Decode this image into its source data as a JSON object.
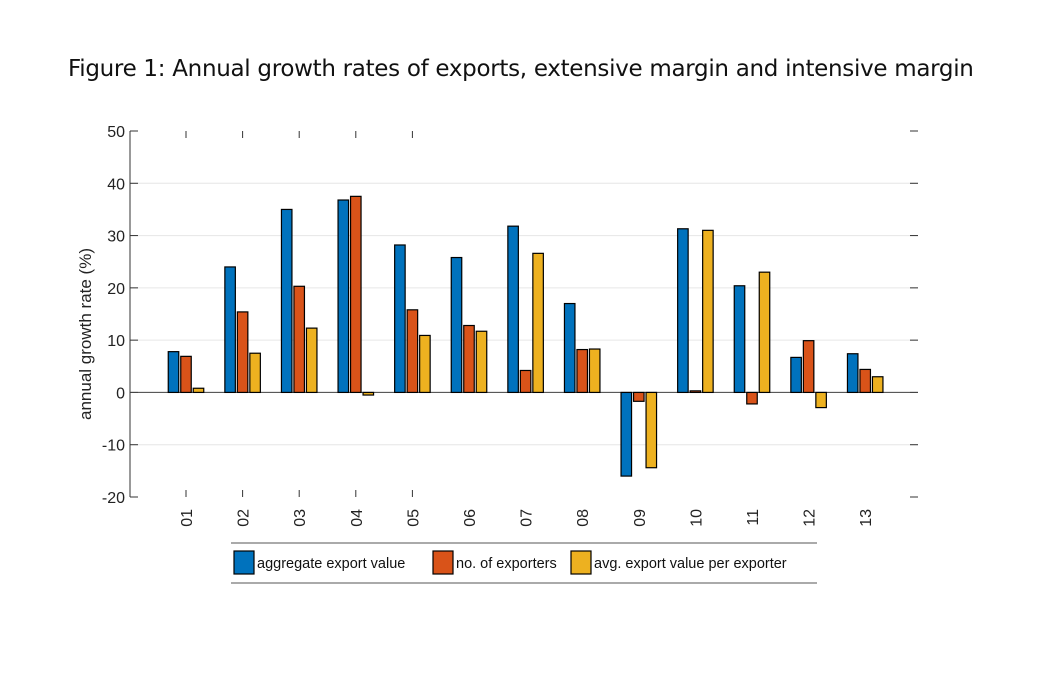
{
  "figure_title": "Figure 1: Annual growth rates of exports, extensive margin and intensive margin",
  "chart_data": {
    "type": "bar",
    "title": "",
    "xlabel": "",
    "ylabel": "annual growth rate (%)",
    "ylim": [
      -20,
      50
    ],
    "yticks": [
      -20,
      -10,
      0,
      10,
      20,
      30,
      40,
      50
    ],
    "ytick_labels": [
      "-20",
      "-10",
      "0",
      "10",
      "20",
      "30",
      "40",
      "50"
    ],
    "categories": [
      "01",
      "02",
      "03",
      "04",
      "05",
      "06",
      "07",
      "08",
      "09",
      "10",
      "11",
      "12",
      "13"
    ],
    "series": [
      {
        "name": "aggregate export value",
        "color": "#0072BD",
        "values": [
          7.8,
          24.0,
          35.0,
          36.8,
          28.2,
          25.8,
          31.8,
          17.0,
          -16.0,
          31.3,
          20.4,
          6.7,
          7.4
        ]
      },
      {
        "name": "no. of exporters",
        "color": "#D95319",
        "values": [
          6.9,
          15.4,
          20.3,
          37.5,
          15.8,
          12.8,
          4.2,
          8.2,
          -1.7,
          0.3,
          -2.2,
          9.9,
          4.4
        ]
      },
      {
        "name": "avg. export value per exporter",
        "color": "#EDB120",
        "values": [
          0.8,
          7.5,
          12.3,
          -0.5,
          10.9,
          11.7,
          26.6,
          8.3,
          -14.4,
          31.0,
          23.0,
          -2.9,
          3.0
        ]
      }
    ],
    "grid": "horizontal",
    "legend_position": "bottom"
  }
}
